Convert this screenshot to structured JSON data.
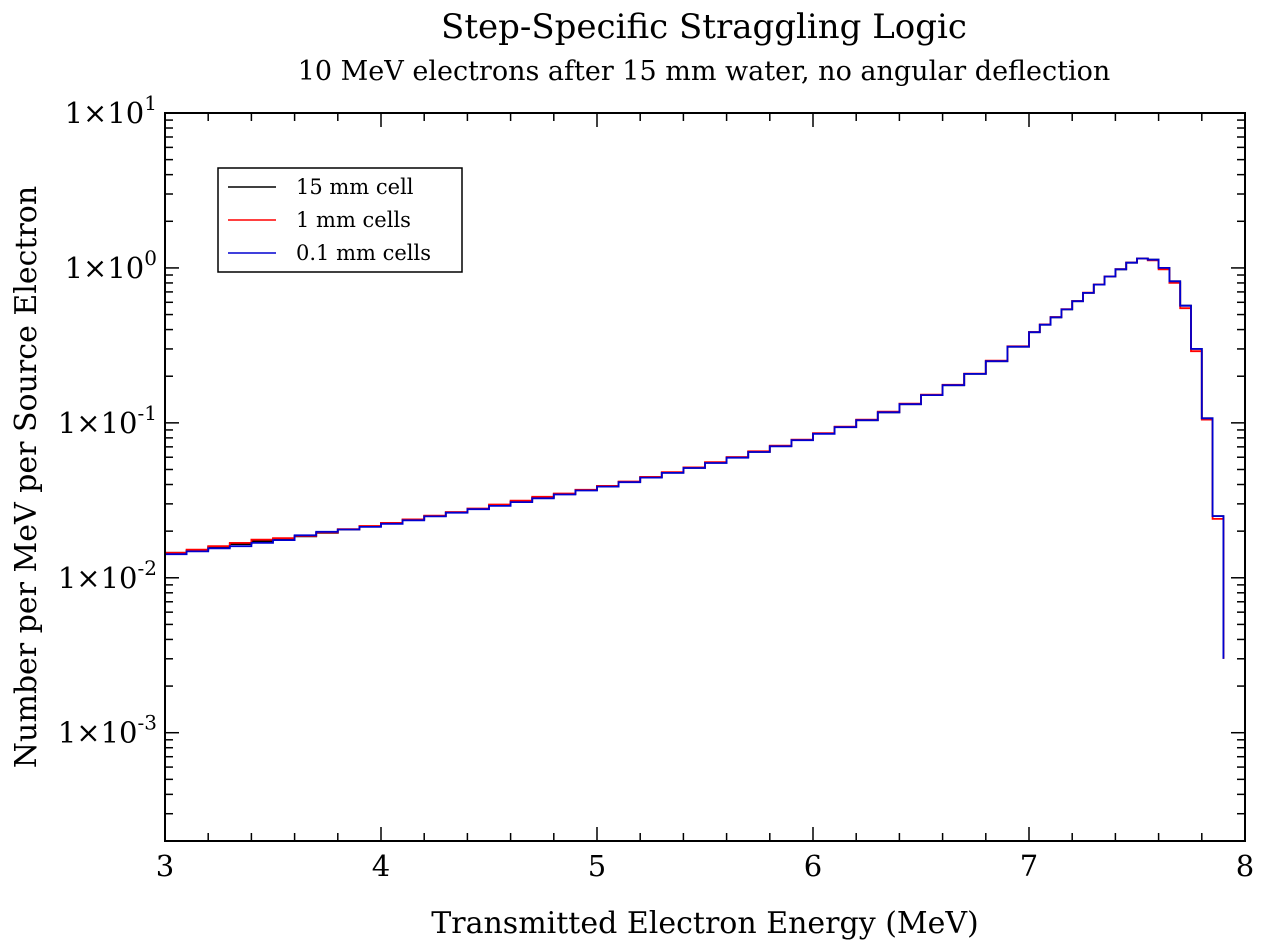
{
  "chart_data": {
    "type": "line",
    "title": "Step-Specific Straggling Logic",
    "subtitle": "10 MeV electrons after 15 mm water, no angular deflection",
    "xlabel": "Transmitted Electron Energy (MeV)",
    "ylabel": "Number per MeV per Source Electron",
    "x_scale": "linear",
    "y_scale": "log",
    "xlim": [
      3,
      8
    ],
    "ylim": [
      0.0002,
      10
    ],
    "grid": false,
    "legend_position": "top-left",
    "x_ticks": [
      {
        "value": 3,
        "label": "3"
      },
      {
        "value": 4,
        "label": "4"
      },
      {
        "value": 5,
        "label": "5"
      },
      {
        "value": 6,
        "label": "6"
      },
      {
        "value": 7,
        "label": "7"
      },
      {
        "value": 8,
        "label": "8"
      }
    ],
    "y_ticks": [
      {
        "value": 0.001,
        "base": "1×10",
        "exp": "-3"
      },
      {
        "value": 0.01,
        "base": "1×10",
        "exp": "-2"
      },
      {
        "value": 0.1,
        "base": "1×10",
        "exp": "-1"
      },
      {
        "value": 1,
        "base": "1×10",
        "exp": "0"
      },
      {
        "value": 10,
        "base": "1×10",
        "exp": "1"
      }
    ],
    "step_histogram": true,
    "x": [
      3.0,
      3.1,
      3.2,
      3.3,
      3.4,
      3.5,
      3.6,
      3.7,
      3.8,
      3.9,
      4.0,
      4.1,
      4.2,
      4.3,
      4.4,
      4.5,
      4.6,
      4.7,
      4.8,
      4.9,
      5.0,
      5.1,
      5.2,
      5.3,
      5.4,
      5.5,
      5.6,
      5.7,
      5.8,
      5.9,
      6.0,
      6.1,
      6.2,
      6.3,
      6.4,
      6.5,
      6.6,
      6.7,
      6.8,
      6.9,
      7.0,
      7.05,
      7.1,
      7.15,
      7.2,
      7.25,
      7.3,
      7.35,
      7.4,
      7.45,
      7.5,
      7.55,
      7.6,
      7.65,
      7.7,
      7.75,
      7.8,
      7.85,
      7.9
    ],
    "series": [
      {
        "name": "15 mm cell",
        "color": "#000000",
        "values": [
          0.0145,
          0.015,
          0.0158,
          0.0165,
          0.0172,
          0.0178,
          0.0185,
          0.0195,
          0.0205,
          0.0215,
          0.0225,
          0.0237,
          0.025,
          0.0264,
          0.0278,
          0.0293,
          0.031,
          0.0328,
          0.0347,
          0.0368,
          0.039,
          0.0416,
          0.0445,
          0.0477,
          0.0513,
          0.0553,
          0.0598,
          0.065,
          0.0708,
          0.0775,
          0.0852,
          0.094,
          0.104,
          0.117,
          0.132,
          0.151,
          0.175,
          0.207,
          0.25,
          0.31,
          0.385,
          0.43,
          0.48,
          0.54,
          0.61,
          0.69,
          0.78,
          0.88,
          0.98,
          1.08,
          1.15,
          1.13,
          1.0,
          0.82,
          0.57,
          0.3,
          0.107,
          0.025,
          0.003
        ]
      },
      {
        "name": "1 mm cells",
        "color": "#ff0000",
        "values": [
          0.0145,
          0.0152,
          0.016,
          0.0168,
          0.0176,
          0.018,
          0.0186,
          0.0196,
          0.0206,
          0.0216,
          0.0226,
          0.0238,
          0.0252,
          0.0266,
          0.028,
          0.0297,
          0.0315,
          0.0333,
          0.035,
          0.037,
          0.0392,
          0.0418,
          0.0448,
          0.048,
          0.0516,
          0.0557,
          0.0602,
          0.0655,
          0.0712,
          0.078,
          0.0858,
          0.0945,
          0.105,
          0.118,
          0.133,
          0.152,
          0.176,
          0.208,
          0.252,
          0.312,
          0.386,
          0.432,
          0.482,
          0.542,
          0.612,
          0.692,
          0.782,
          0.882,
          0.982,
          1.082,
          1.15,
          1.12,
          0.98,
          0.8,
          0.55,
          0.29,
          0.105,
          0.024,
          0.003
        ]
      },
      {
        "name": "0.1 mm cells",
        "color": "#0000d0",
        "values": [
          0.0142,
          0.0148,
          0.0155,
          0.016,
          0.0168,
          0.0175,
          0.0188,
          0.0198,
          0.0205,
          0.0213,
          0.0223,
          0.0235,
          0.0249,
          0.0263,
          0.0277,
          0.0291,
          0.0308,
          0.0326,
          0.0345,
          0.0366,
          0.0388,
          0.0414,
          0.0443,
          0.0475,
          0.0511,
          0.0551,
          0.0596,
          0.0648,
          0.0706,
          0.0773,
          0.085,
          0.0938,
          0.104,
          0.117,
          0.132,
          0.151,
          0.175,
          0.207,
          0.25,
          0.31,
          0.385,
          0.43,
          0.48,
          0.54,
          0.61,
          0.69,
          0.78,
          0.88,
          0.98,
          1.08,
          1.15,
          1.13,
          1.0,
          0.82,
          0.57,
          0.3,
          0.107,
          0.025,
          0.003
        ]
      }
    ]
  }
}
